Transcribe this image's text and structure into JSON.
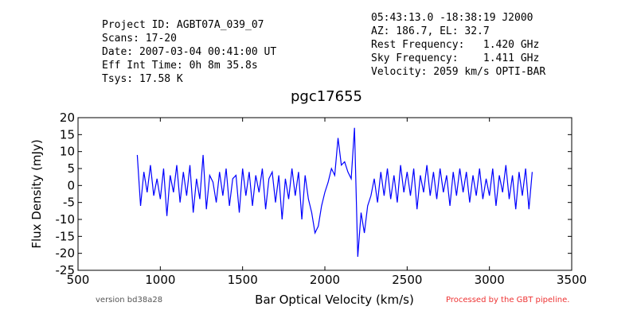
{
  "header": {
    "left": [
      "Project ID: AGBT07A_039_07",
      "Scans: 17-20",
      "Date: 2007-03-04 00:41:00 UT",
      "Eff Int Time: 0h 8m 35.8s",
      "Tsys: 17.58 K"
    ],
    "right": [
      "05:43:13.0 -18:38:19 J2000",
      "AZ: 186.7, EL: 32.7",
      "Rest Frequency:   1.420 GHz",
      "Sky Frequency:    1.411 GHz",
      "Velocity: 2059 km/s OPTI-BAR"
    ]
  },
  "footer": {
    "version": "version bd38a28",
    "pipeline": "Processed by the GBT pipeline."
  },
  "chart_data": {
    "type": "line",
    "title": "pgc17655",
    "x_label": "Bar Optical Velocity (km/s)",
    "y_label": "Flux Density (mJy)",
    "xlim": [
      500,
      3500
    ],
    "xticks": [
      500,
      1000,
      1500,
      2000,
      2500,
      3000,
      3500
    ],
    "ylim": [
      -25,
      20
    ],
    "yticks": [
      -25,
      -20,
      -15,
      -10,
      -5,
      0,
      5,
      10,
      15,
      20
    ],
    "grid": false,
    "x": [
      860,
      880,
      900,
      920,
      940,
      960,
      980,
      1000,
      1020,
      1040,
      1060,
      1080,
      1100,
      1120,
      1140,
      1160,
      1180,
      1200,
      1220,
      1240,
      1260,
      1280,
      1300,
      1320,
      1340,
      1360,
      1380,
      1400,
      1420,
      1440,
      1460,
      1480,
      1500,
      1520,
      1540,
      1560,
      1580,
      1600,
      1620,
      1640,
      1660,
      1680,
      1700,
      1720,
      1740,
      1760,
      1780,
      1800,
      1820,
      1840,
      1860,
      1880,
      1900,
      1920,
      1940,
      1960,
      1980,
      2000,
      2020,
      2040,
      2060,
      2080,
      2100,
      2120,
      2140,
      2160,
      2180,
      2200,
      2220,
      2240,
      2260,
      2280,
      2300,
      2320,
      2340,
      2360,
      2380,
      2400,
      2420,
      2440,
      2460,
      2480,
      2500,
      2520,
      2540,
      2560,
      2580,
      2600,
      2620,
      2640,
      2660,
      2680,
      2700,
      2720,
      2740,
      2760,
      2780,
      2800,
      2820,
      2840,
      2860,
      2880,
      2900,
      2920,
      2940,
      2960,
      2980,
      3000,
      3020,
      3040,
      3060,
      3080,
      3100,
      3120,
      3140,
      3160,
      3180,
      3200,
      3220,
      3240,
      3260
    ],
    "series": [
      {
        "color": "#0000ff",
        "values": [
          9,
          -6,
          4,
          -2,
          6,
          -3,
          2,
          -4,
          5,
          -9,
          3,
          -2,
          6,
          -5,
          4,
          -3,
          6,
          -8,
          2,
          -4,
          9,
          -7,
          3,
          1,
          -5,
          4,
          -3,
          5,
          -6,
          2,
          3,
          -8,
          5,
          -3,
          4,
          -6,
          3,
          -2,
          5,
          -7,
          2,
          4,
          -5,
          3,
          -10,
          2,
          -4,
          5,
          -3,
          4,
          -10,
          3,
          -4,
          -8,
          -14,
          -12,
          -6,
          -2,
          1,
          5,
          3,
          14,
          6,
          7,
          4,
          2,
          17,
          -21,
          -8,
          -14,
          -6,
          -3,
          2,
          -5,
          4,
          -3,
          5,
          -4,
          3,
          -5,
          6,
          -2,
          4,
          -3,
          5,
          -7,
          3,
          -2,
          6,
          -3,
          4,
          -4,
          5,
          -2,
          3,
          -6,
          4,
          -3,
          5,
          -2,
          4,
          -5,
          3,
          -3,
          5,
          -4,
          2,
          -3,
          5,
          -6,
          3,
          -2,
          6,
          -4,
          3,
          -7,
          4,
          -3,
          5,
          -7,
          4
        ]
      }
    ]
  }
}
